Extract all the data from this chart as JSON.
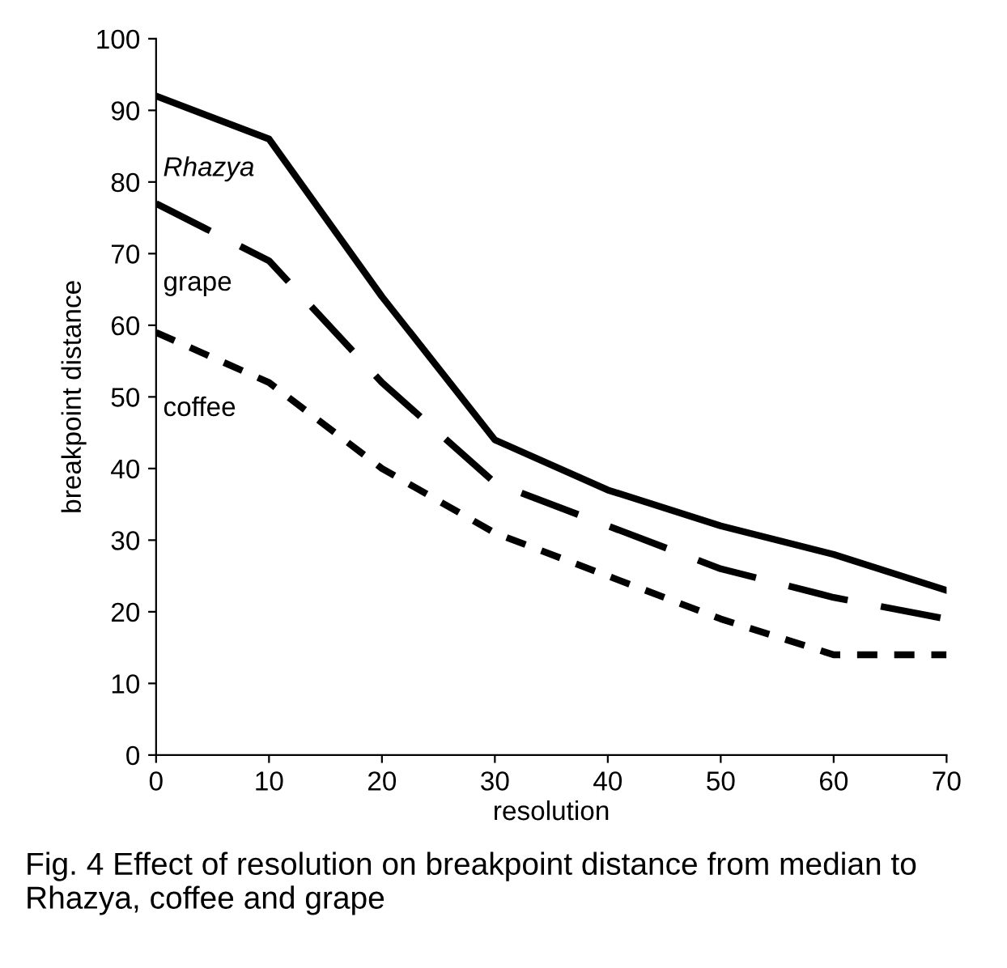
{
  "chart_data": {
    "type": "line",
    "xlabel": "resolution",
    "ylabel": "breakpoint distance",
    "x": [
      0,
      10,
      20,
      30,
      40,
      50,
      60,
      70
    ],
    "series": [
      {
        "name": "Rhazya",
        "color": "#000000",
        "line_style": "solid",
        "values": [
          92,
          86,
          64,
          44,
          37,
          32,
          28,
          23
        ]
      },
      {
        "name": "grape",
        "color": "#000000",
        "line_style": "dashed",
        "values": [
          77,
          69,
          52,
          38,
          32,
          26,
          22,
          19
        ]
      },
      {
        "name": "coffee",
        "color": "#000000",
        "line_style": "dotted",
        "values": [
          59,
          52,
          40,
          31,
          25,
          19,
          14,
          14
        ]
      }
    ],
    "xlim": [
      0,
      70
    ],
    "xticks": [
      0,
      10,
      20,
      30,
      40,
      50,
      60,
      70
    ],
    "ylim": [
      0,
      100
    ],
    "yticks": [
      0,
      10,
      20,
      30,
      40,
      50,
      60,
      70,
      80,
      90,
      100
    ],
    "grid": false,
    "legend": false,
    "marker": "none",
    "annotations": [
      "Fig. 4 Effect of resolution on breakpoint distance from median to Rhazya, coffee and grape"
    ]
  }
}
